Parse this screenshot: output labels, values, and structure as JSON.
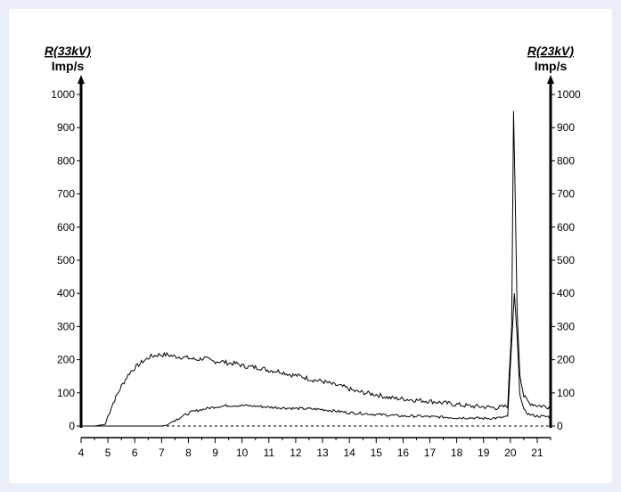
{
  "chart_data": {
    "type": "line",
    "left_axis": {
      "title": "R(33kV)",
      "unit": "Imp/s"
    },
    "right_axis": {
      "title": "R(23kV)",
      "unit": "Imp/s"
    },
    "xlim": [
      4,
      21.5
    ],
    "ylim": [
      0,
      1000
    ],
    "x_ticks": [
      4,
      5,
      6,
      7,
      8,
      9,
      10,
      11,
      12,
      13,
      14,
      15,
      16,
      17,
      18,
      19,
      20,
      21
    ],
    "y_ticks": [
      0,
      100,
      200,
      300,
      400,
      500,
      600,
      700,
      800,
      900,
      1000
    ],
    "baseline": {
      "y": 0,
      "style": "dashed"
    },
    "grid": false,
    "legend": "none",
    "line_color": "#000000",
    "series": [
      {
        "x": [
          4,
          4.5,
          4.9,
          5.0,
          5.2,
          5.5,
          5.8,
          6.0,
          6.3,
          6.6,
          6.9,
          7.2,
          7.5,
          7.8,
          8.0,
          8.3,
          8.6,
          8.9,
          9.2,
          9.5,
          9.8,
          10.1,
          10.4,
          10.7,
          11.0,
          11.4,
          11.8,
          12.2,
          12.6,
          13.0,
          13.4,
          13.8,
          14.2,
          14.6,
          15.0,
          15.5,
          16.0,
          16.5,
          17.0,
          17.5,
          18.0,
          18.5,
          19.0,
          19.5,
          19.9,
          20.05,
          20.12,
          20.18,
          20.25,
          20.35,
          20.5,
          20.7,
          21.0,
          21.5
        ],
        "values": [
          0,
          0,
          5,
          30,
          70,
          120,
          160,
          175,
          195,
          210,
          215,
          215,
          210,
          208,
          205,
          200,
          205,
          195,
          195,
          190,
          188,
          180,
          178,
          175,
          168,
          165,
          155,
          150,
          140,
          135,
          125,
          118,
          105,
          100,
          95,
          85,
          82,
          78,
          75,
          70,
          65,
          60,
          58,
          55,
          60,
          300,
          950,
          700,
          350,
          160,
          90,
          70,
          62,
          58
        ]
      },
      {
        "x": [
          4,
          5,
          6,
          7,
          7.2,
          7.5,
          7.8,
          8.1,
          8.5,
          9.0,
          9.5,
          10.0,
          10.5,
          11.0,
          11.5,
          12.0,
          12.5,
          13.0,
          13.5,
          14.0,
          14.5,
          15.0,
          15.5,
          16.0,
          16.5,
          17.0,
          17.5,
          18.0,
          18.5,
          19.0,
          19.5,
          19.9,
          20.05,
          20.15,
          20.25,
          20.35,
          20.5,
          20.7,
          21.0,
          21.5
        ],
        "values": [
          0,
          0,
          0,
          0,
          3,
          18,
          30,
          42,
          50,
          58,
          62,
          62,
          60,
          57,
          55,
          53,
          52,
          50,
          45,
          40,
          38,
          35,
          33,
          30,
          30,
          28,
          27,
          25,
          25,
          23,
          24,
          28,
          250,
          400,
          270,
          100,
          48,
          35,
          30,
          28
        ]
      }
    ]
  }
}
